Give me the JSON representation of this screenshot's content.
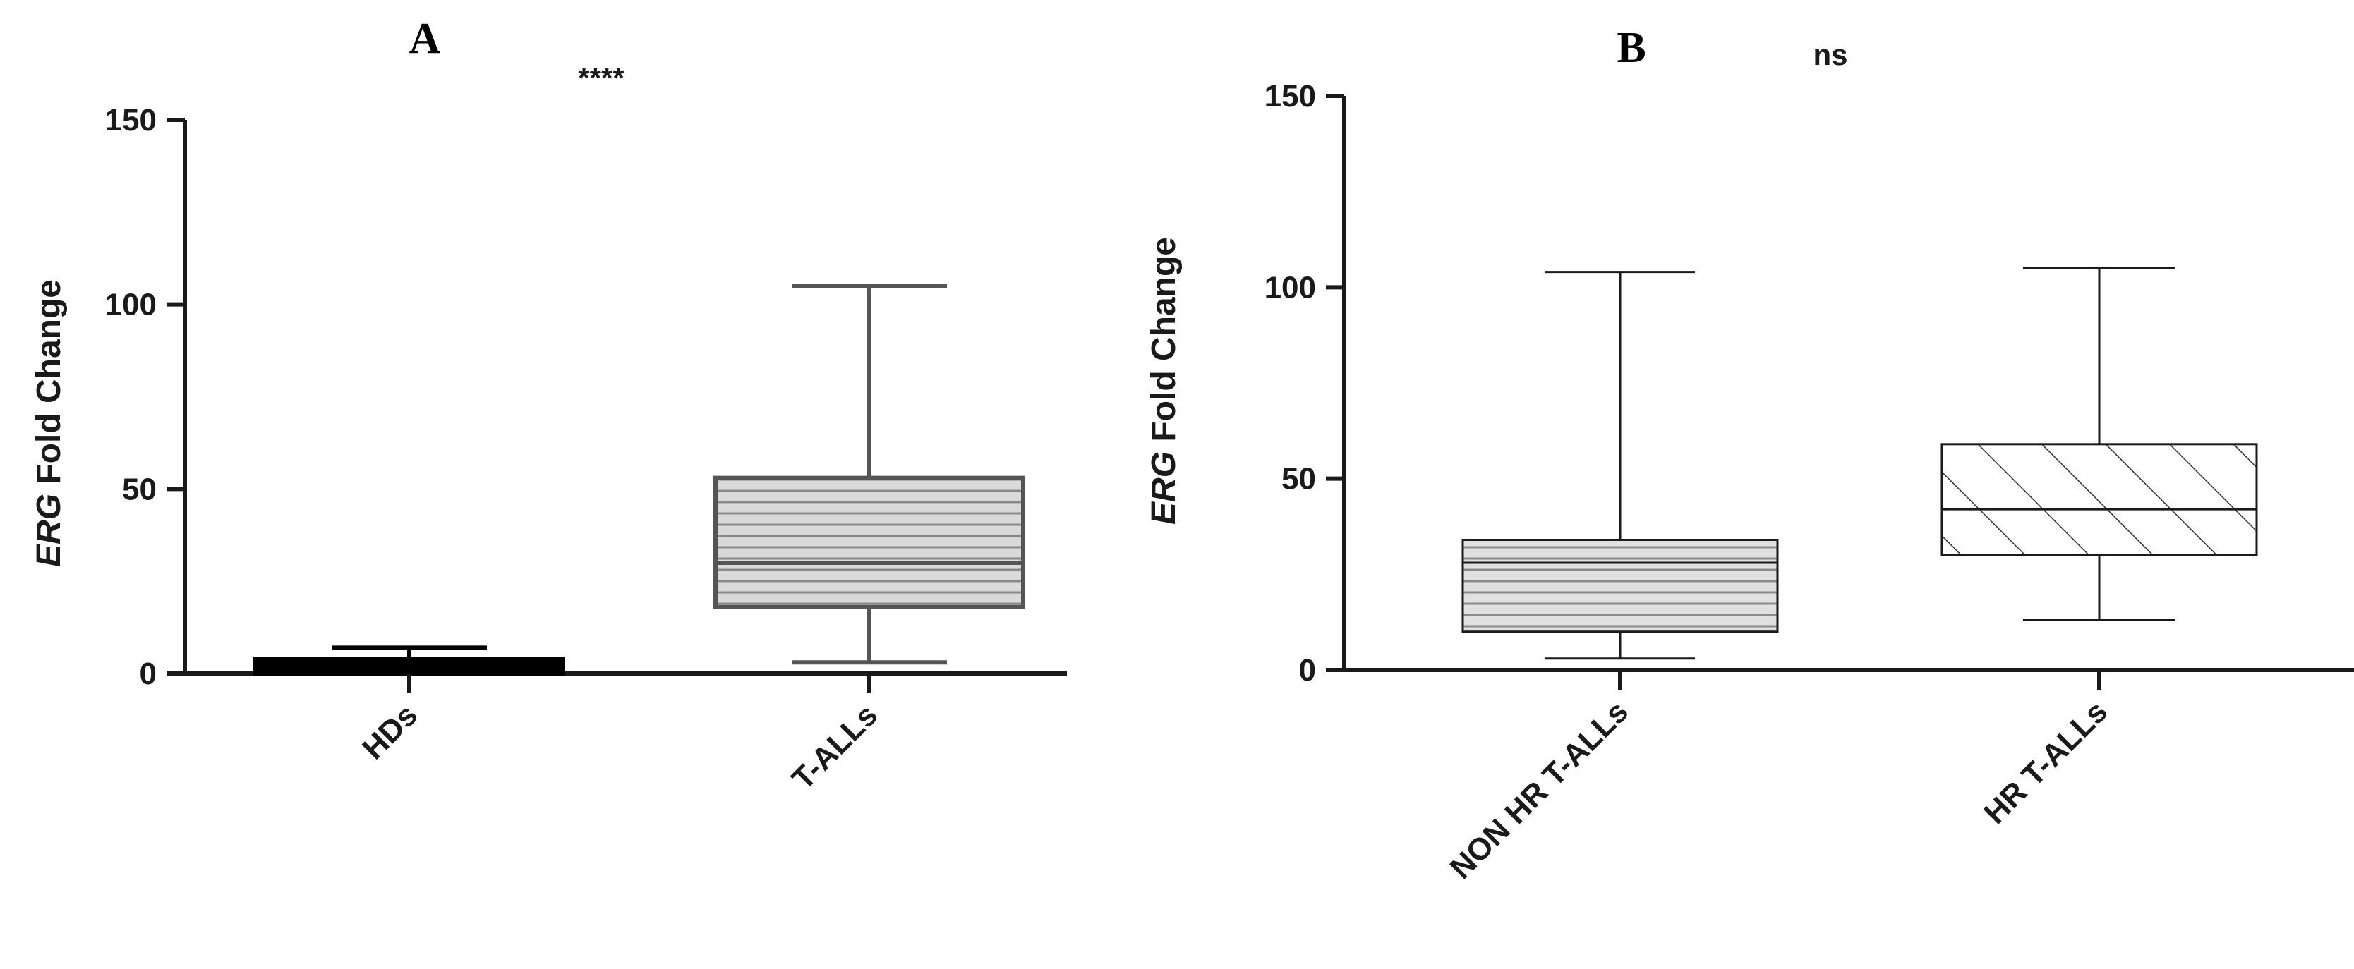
{
  "chart_data": [
    {
      "type": "box",
      "panel_label": "A",
      "significance": "****",
      "ylabel_italic": "ERG",
      "ylabel_rest": " Fold Change",
      "ylim": [
        0,
        150
      ],
      "yticks": [
        "0",
        "50",
        "100",
        "150"
      ],
      "categories": [
        "HDs",
        "T-ALLs"
      ],
      "boxes": [
        {
          "name": "HDs",
          "min": 0,
          "q1": 0,
          "median": 2,
          "q3": 4,
          "max": 7,
          "fill": "solid-black"
        },
        {
          "name": "T-ALLs",
          "min": 3,
          "q1": 18,
          "median": 30,
          "q3": 53,
          "max": 105,
          "fill": "horizontal-lines"
        }
      ],
      "colors": {
        "axis": "#1a1a1a",
        "box_fill": "#d9d9d9",
        "box_stroke": "#555555",
        "hds_fill": "#000000"
      }
    },
    {
      "type": "box",
      "panel_label": "B",
      "significance": "ns",
      "ylabel_italic": "ERG",
      "ylabel_rest": " Fold Change",
      "ylim": [
        0,
        150
      ],
      "yticks": [
        "0",
        "50",
        "100",
        "150"
      ],
      "categories": [
        "NON HR T-ALLs",
        "HR T-ALLs"
      ],
      "boxes": [
        {
          "name": "NON HR T-ALLs",
          "min": 3,
          "q1": 10,
          "median": 28,
          "q3": 34,
          "max": 104,
          "fill": "horizontal-lines"
        },
        {
          "name": "HR T-ALLs",
          "min": 13,
          "q1": 30,
          "median": 42,
          "q3": 59,
          "max": 105,
          "fill": "diagonal-lines"
        }
      ],
      "colors": {
        "axis": "#1a1a1a",
        "box_fill": "#e0e0e0",
        "box_stroke": "#1a1a1a"
      }
    }
  ]
}
